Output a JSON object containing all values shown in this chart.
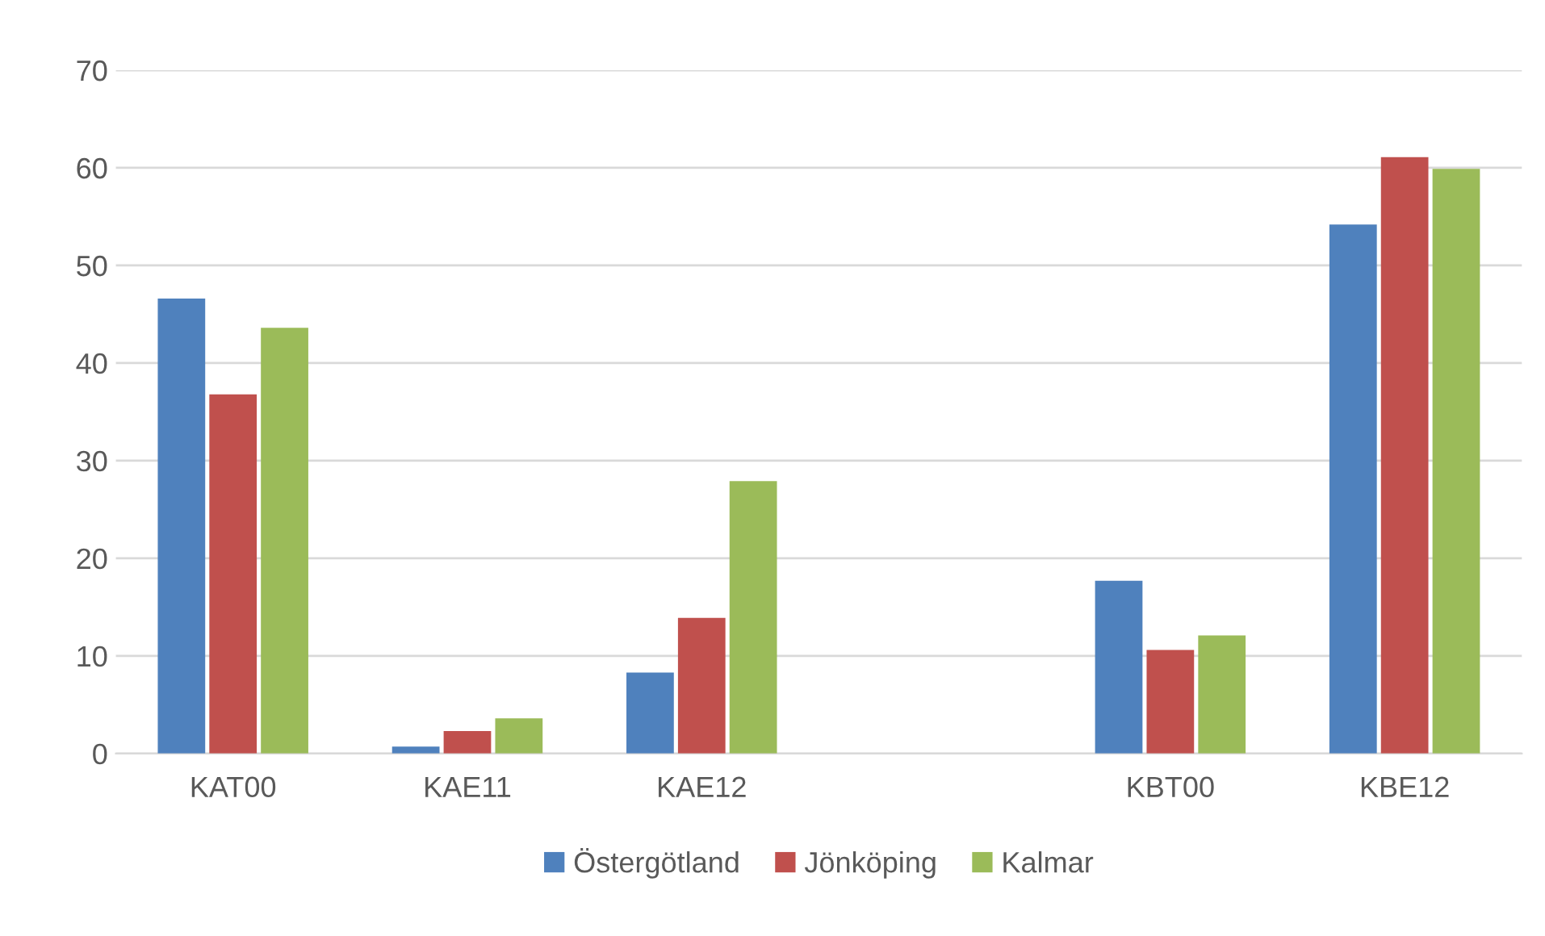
{
  "chart_data": {
    "type": "bar",
    "categories": [
      "KAT00",
      "KAE11",
      "KAE12",
      null,
      "KBT00",
      "KBE12"
    ],
    "series": [
      {
        "name": "Östergötland",
        "color": "#4f81bd",
        "values": [
          46.6,
          0.7,
          8.3,
          null,
          17.7,
          54.2
        ]
      },
      {
        "name": "Jönköping",
        "color": "#c0504d",
        "values": [
          36.8,
          2.3,
          13.9,
          null,
          10.6,
          61.1
        ]
      },
      {
        "name": "Kalmar",
        "color": "#9bbb59",
        "values": [
          43.6,
          3.6,
          27.9,
          null,
          12.1,
          59.9
        ]
      }
    ],
    "ylim": [
      0,
      70
    ],
    "yticks": [
      0,
      10,
      20,
      30,
      40,
      50,
      60,
      70
    ],
    "grid": "y",
    "legend": "bottom"
  }
}
